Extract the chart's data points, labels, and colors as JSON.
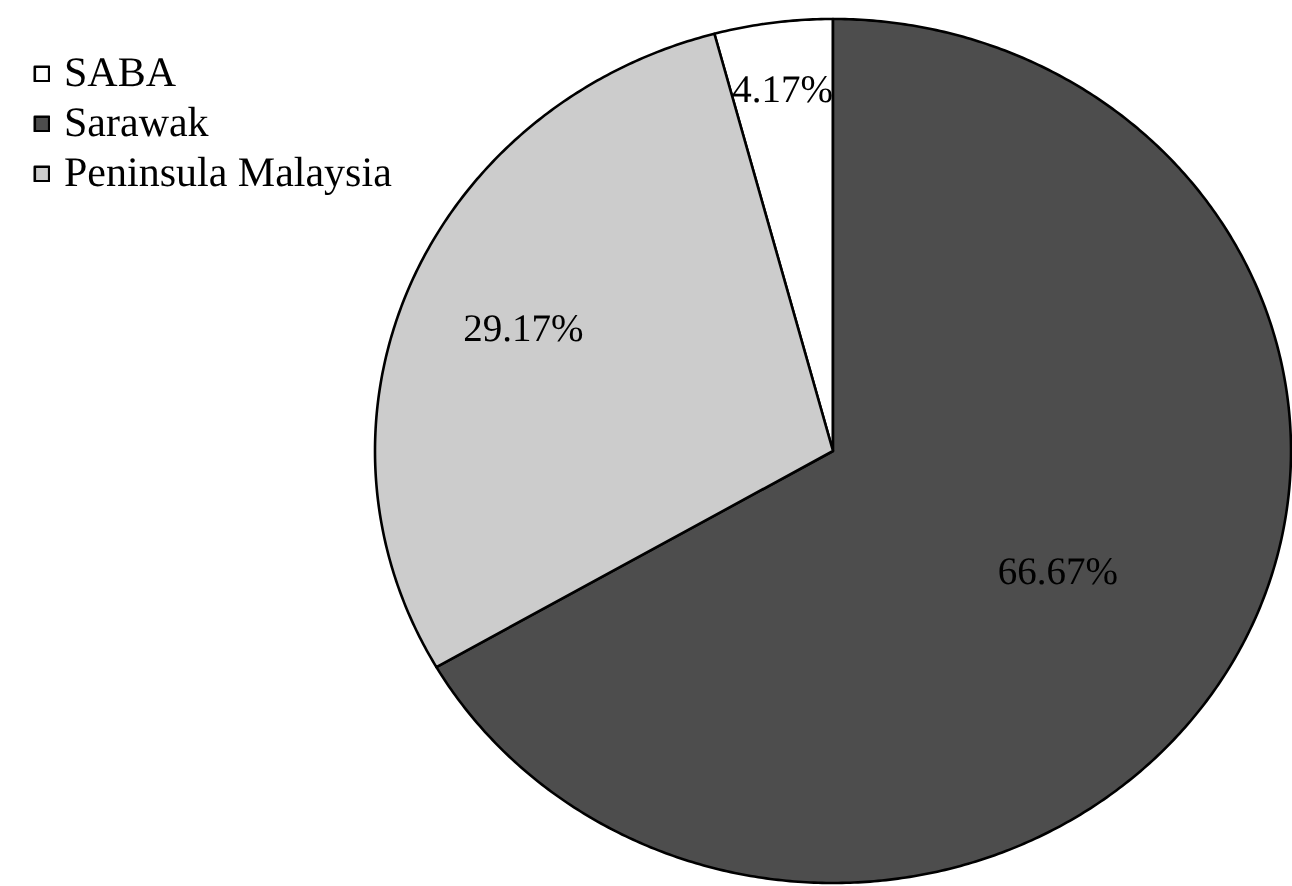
{
  "chart_data": {
    "type": "pie",
    "categories": [
      "SABA",
      "Sarawak",
      "Peninsula Malaysia"
    ],
    "values": [
      4.17,
      66.67,
      29.17
    ],
    "colors": [
      "#ffffff",
      "#4d4d4d",
      "#cccccc"
    ],
    "value_labels": [
      "4.17%",
      "66.67%",
      "29.17%"
    ],
    "legend": "top left"
  }
}
